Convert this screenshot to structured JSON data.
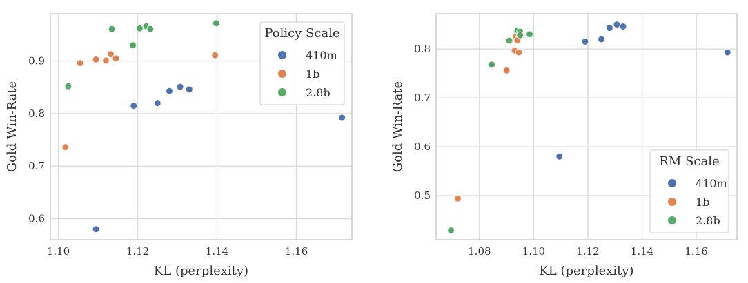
{
  "chart_data": [
    {
      "type": "scatter",
      "xlabel": "KL (perplexity)",
      "ylabel": "Gold Win-Rate",
      "xlim": [
        1.098,
        1.174
      ],
      "ylim": [
        0.56,
        0.99
      ],
      "xticks": [
        1.1,
        1.12,
        1.14,
        1.16
      ],
      "xtick_labels": [
        "1.10",
        "1.12",
        "1.14",
        "1.16"
      ],
      "yticks": [
        0.6,
        0.7,
        0.8,
        0.9
      ],
      "ytick_labels": [
        "0.6",
        "0.7",
        "0.8",
        "0.9"
      ],
      "grid": true,
      "legend": {
        "title": "Policy Scale",
        "placement": "top-right"
      },
      "series": [
        {
          "name": "410m",
          "color": "#4c72b0",
          "points": [
            [
              1.1095,
              0.58
            ],
            [
              1.119,
              0.815
            ],
            [
              1.125,
              0.82
            ],
            [
              1.128,
              0.843
            ],
            [
              1.1307,
              0.851
            ],
            [
              1.133,
              0.846
            ],
            [
              1.1715,
              0.792
            ]
          ]
        },
        {
          "name": "1b",
          "color": "#dd8452",
          "points": [
            [
              1.1018,
              0.736
            ],
            [
              1.1055,
              0.896
            ],
            [
              1.1095,
              0.903
            ],
            [
              1.112,
              0.901
            ],
            [
              1.1132,
              0.913
            ],
            [
              1.1145,
              0.905
            ],
            [
              1.1395,
              0.911
            ]
          ]
        },
        {
          "name": "2.8b",
          "color": "#55a868",
          "points": [
            [
              1.1025,
              0.852
            ],
            [
              1.1135,
              0.961
            ],
            [
              1.1188,
              0.93
            ],
            [
              1.1205,
              0.962
            ],
            [
              1.1222,
              0.966
            ],
            [
              1.1232,
              0.961
            ],
            [
              1.1398,
              0.972
            ]
          ]
        }
      ]
    },
    {
      "type": "scatter",
      "xlabel": "KL (perplexity)",
      "ylabel": "Gold Win-Rate",
      "xlim": [
        1.064,
        1.175
      ],
      "ylim": [
        0.41,
        0.872
      ],
      "xticks": [
        1.08,
        1.1,
        1.12,
        1.14,
        1.16
      ],
      "xtick_labels": [
        "1.08",
        "1.10",
        "1.12",
        "1.14",
        "1.16"
      ],
      "yticks": [
        0.5,
        0.6,
        0.7,
        0.8
      ],
      "ytick_labels": [
        "0.5",
        "0.6",
        "0.7",
        "0.8"
      ],
      "grid": true,
      "legend": {
        "title": "RM Scale",
        "placement": "bottom-right"
      },
      "series": [
        {
          "name": "410m",
          "color": "#4c72b0",
          "points": [
            [
              1.1095,
              0.58
            ],
            [
              1.119,
              0.815
            ],
            [
              1.125,
              0.82
            ],
            [
              1.128,
              0.843
            ],
            [
              1.1307,
              0.85
            ],
            [
              1.133,
              0.846
            ],
            [
              1.1715,
              0.793
            ]
          ]
        },
        {
          "name": "1b",
          "color": "#dd8452",
          "points": [
            [
              1.072,
              0.494
            ],
            [
              1.09,
              0.756
            ],
            [
              1.093,
              0.797
            ],
            [
              1.0935,
              0.825
            ],
            [
              1.0945,
              0.793
            ],
            [
              1.094,
              0.818
            ],
            [
              1.0955,
              0.828
            ]
          ]
        },
        {
          "name": "2.8b",
          "color": "#55a868",
          "points": [
            [
              1.0695,
              0.429
            ],
            [
              1.0845,
              0.768
            ],
            [
              1.091,
              0.817
            ],
            [
              1.094,
              0.838
            ],
            [
              1.095,
              0.835
            ],
            [
              1.095,
              0.828
            ],
            [
              1.0985,
              0.83
            ]
          ]
        }
      ]
    }
  ]
}
